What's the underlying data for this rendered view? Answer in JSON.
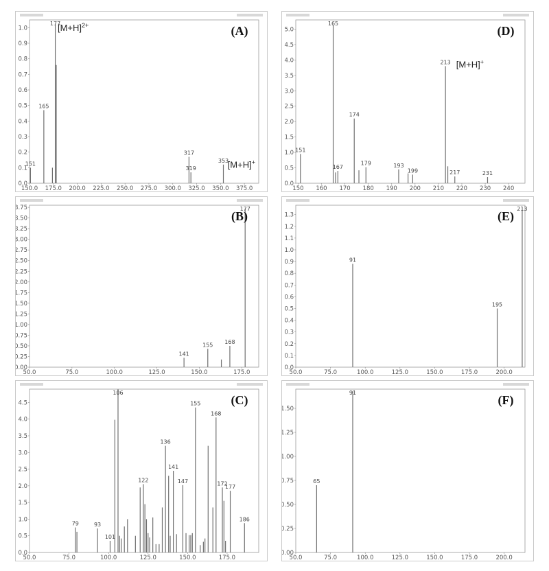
{
  "chart_data": [
    {
      "id": "A",
      "type": "bar",
      "title": "(A)",
      "xlim": [
        150,
        390
      ],
      "ylim": [
        0,
        1.05
      ],
      "xticks": [
        "150.0",
        "175.0",
        "200.0",
        "225.0",
        "250.0",
        "275.0",
        "300.0",
        "325.0",
        "350.0",
        "375.0"
      ],
      "yticks": [
        "0.0",
        "0.1",
        "0.2",
        "0.3",
        "0.4",
        "0.5",
        "0.6",
        "0.7",
        "0.8",
        "0.9",
        "1.0"
      ],
      "x": [
        151,
        165,
        174,
        177,
        178,
        317,
        319,
        353
      ],
      "values": [
        0.1,
        0.47,
        0.1,
        1.02,
        0.76,
        0.17,
        0.07,
        0.12
      ],
      "peak_labels": [
        {
          "x": 151,
          "label": "151"
        },
        {
          "x": 165,
          "label": "165"
        },
        {
          "x": 177,
          "label": "177"
        },
        {
          "x": 317,
          "label": "317"
        },
        {
          "x": 319,
          "label": "319"
        },
        {
          "x": 353,
          "label": "353"
        }
      ],
      "annotations": [
        {
          "x": 178,
          "y": 0.98,
          "text": "[M+H]",
          "sup": "2+"
        },
        {
          "x": 356,
          "y": 0.1,
          "text": "[M+H]",
          "sup": "+"
        }
      ]
    },
    {
      "id": "B",
      "type": "bar",
      "title": "(B)",
      "xlim": [
        50,
        185
      ],
      "ylim": [
        0,
        3.8
      ],
      "xticks": [
        "50.0",
        "75.0",
        "100.0",
        "125.0",
        "150.0",
        "175.0"
      ],
      "yticks": [
        "0.00",
        "0.25",
        "0.50",
        "0.75",
        "1.00",
        "1.25",
        "1.50",
        "1.75",
        "2.00",
        "2.25",
        "2.50",
        "2.75",
        "3.00",
        "3.25",
        "3.50",
        "3.75"
      ],
      "x": [
        141,
        155,
        163,
        168,
        177
      ],
      "values": [
        0.22,
        0.43,
        0.18,
        0.5,
        3.72
      ],
      "peak_labels": [
        {
          "x": 141,
          "label": "141"
        },
        {
          "x": 155,
          "label": "155"
        },
        {
          "x": 168,
          "label": "168"
        },
        {
          "x": 177,
          "label": "177"
        }
      ],
      "annotations": []
    },
    {
      "id": "C",
      "type": "bar",
      "title": "(C)",
      "xlim": [
        50,
        195
      ],
      "ylim": [
        0,
        4.9
      ],
      "xticks": [
        "50.0",
        "75.0",
        "100.0",
        "125.0",
        "150.0",
        "175.0"
      ],
      "yticks": [
        "0.0",
        "0.5",
        "1.0",
        "1.5",
        "2.0",
        "2.5",
        "3.0",
        "3.5",
        "4.0",
        "4.5"
      ],
      "x": [
        79,
        80,
        93,
        101,
        104,
        106,
        107,
        108,
        110,
        112,
        117,
        120,
        122,
        123,
        124,
        125,
        126,
        128,
        130,
        132,
        134,
        136,
        138,
        139,
        141,
        143,
        147,
        149,
        151,
        152,
        153,
        155,
        158,
        160,
        161,
        163,
        166,
        168,
        172,
        173,
        174,
        177,
        186
      ],
      "values": [
        0.75,
        0.62,
        0.72,
        0.35,
        3.98,
        4.9,
        0.5,
        0.42,
        0.78,
        1.0,
        0.5,
        1.95,
        2.05,
        1.45,
        1.0,
        0.58,
        0.45,
        1.05,
        0.25,
        0.25,
        1.35,
        3.2,
        2.3,
        0.5,
        2.45,
        0.55,
        2.02,
        0.58,
        0.52,
        0.52,
        0.58,
        4.35,
        0.22,
        0.32,
        0.42,
        3.2,
        1.35,
        4.05,
        1.95,
        1.55,
        0.35,
        1.85,
        0.88
      ],
      "peak_labels": [
        {
          "x": 79,
          "label": "79"
        },
        {
          "x": 93,
          "label": "93"
        },
        {
          "x": 101,
          "label": "101"
        },
        {
          "x": 106,
          "label": "106"
        },
        {
          "x": 122,
          "label": "122"
        },
        {
          "x": 136,
          "label": "136"
        },
        {
          "x": 141,
          "label": "141"
        },
        {
          "x": 147,
          "label": "147"
        },
        {
          "x": 155,
          "label": "155"
        },
        {
          "x": 168,
          "label": "168"
        },
        {
          "x": 172,
          "label": "172"
        },
        {
          "x": 177,
          "label": "177"
        },
        {
          "x": 186,
          "label": "186"
        }
      ],
      "annotations": []
    },
    {
      "id": "D",
      "type": "bar",
      "title": "(D)",
      "xlim": [
        149,
        247
      ],
      "ylim": [
        0,
        5.3
      ],
      "xticks": [
        "150",
        "160",
        "170",
        "180",
        "190",
        "200",
        "210",
        "220",
        "230",
        "240"
      ],
      "yticks": [
        "0.0",
        "0.5",
        "1.0",
        "1.5",
        "2.0",
        "2.5",
        "3.0",
        "3.5",
        "4.0",
        "4.5",
        "5.0"
      ],
      "x": [
        151,
        165,
        166,
        167,
        174,
        176,
        179,
        193,
        197,
        199,
        213,
        214,
        217,
        231
      ],
      "values": [
        0.95,
        5.12,
        0.35,
        0.4,
        2.1,
        0.42,
        0.52,
        0.45,
        0.32,
        0.28,
        3.8,
        0.55,
        0.22,
        0.2
      ],
      "peak_labels": [
        {
          "x": 151,
          "label": "151"
        },
        {
          "x": 165,
          "label": "165"
        },
        {
          "x": 167,
          "label": "167"
        },
        {
          "x": 174,
          "label": "174"
        },
        {
          "x": 179,
          "label": "179"
        },
        {
          "x": 193,
          "label": "193"
        },
        {
          "x": 199,
          "label": "199"
        },
        {
          "x": 213,
          "label": "213"
        },
        {
          "x": 217,
          "label": "217"
        },
        {
          "x": 231,
          "label": "231"
        }
      ],
      "annotations": [
        {
          "x": 217,
          "y": 3.75,
          "text": "[M+H]",
          "sup": "+"
        }
      ]
    },
    {
      "id": "E",
      "type": "bar",
      "title": "(E)",
      "xlim": [
        50,
        215
      ],
      "ylim": [
        0,
        1.38
      ],
      "xticks": [
        "50.0",
        "75.0",
        "100.0",
        "125.0",
        "150.0",
        "175.0",
        "200.0"
      ],
      "yticks": [
        "0.0",
        "0.1",
        "0.2",
        "0.3",
        "0.4",
        "0.5",
        "0.6",
        "0.7",
        "0.8",
        "0.9",
        "1.0",
        "1.1",
        "1.2",
        "1.3"
      ],
      "x": [
        91,
        195,
        213
      ],
      "values": [
        0.88,
        0.5,
        1.34
      ],
      "peak_labels": [
        {
          "x": 91,
          "label": "91"
        },
        {
          "x": 195,
          "label": "195"
        },
        {
          "x": 213,
          "label": "213"
        }
      ],
      "annotations": []
    },
    {
      "id": "F",
      "type": "bar",
      "title": "(F)",
      "xlim": [
        50,
        215
      ],
      "ylim": [
        0,
        1.7
      ],
      "xticks": [
        "50.0",
        "75.0",
        "100.0",
        "125.0",
        "150.0",
        "175.0",
        "200.0"
      ],
      "yticks": [
        "0.00",
        "0.25",
        "0.50",
        "0.75",
        "1.00",
        "1.25",
        "1.50"
      ],
      "x": [
        65,
        91
      ],
      "values": [
        0.7,
        1.68
      ],
      "peak_labels": [
        {
          "x": 65,
          "label": "65"
        },
        {
          "x": 91,
          "label": "91"
        }
      ],
      "annotations": []
    }
  ]
}
